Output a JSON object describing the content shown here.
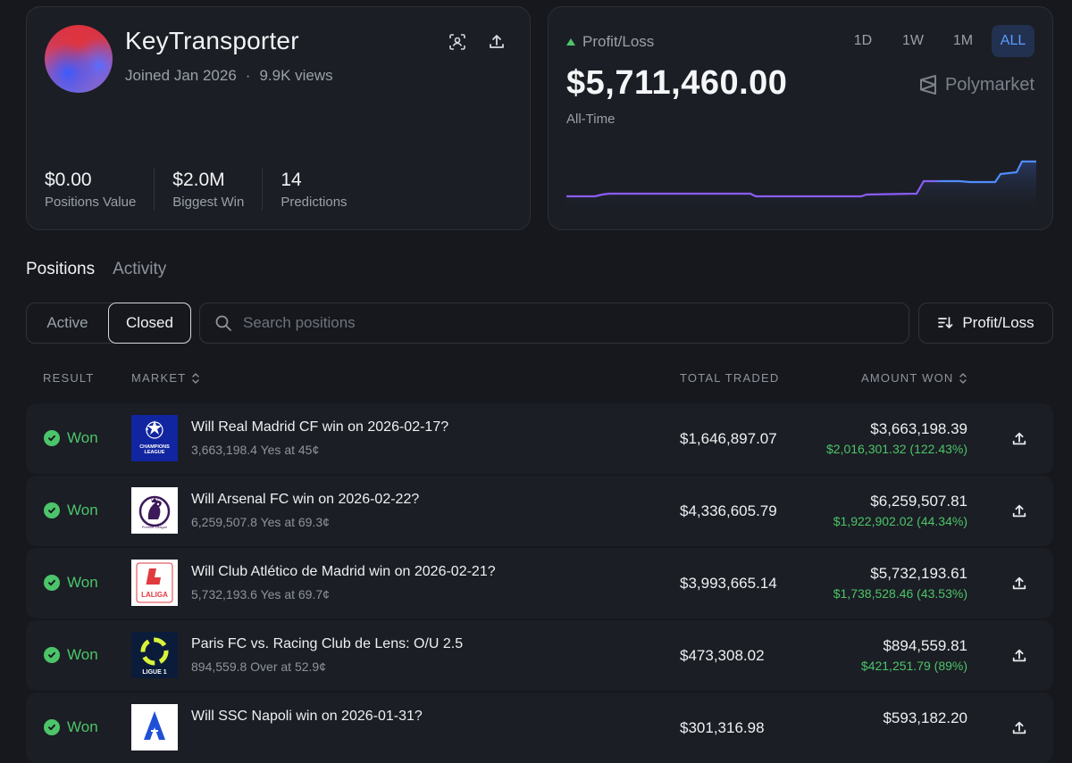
{
  "profile": {
    "name": "KeyTransporter",
    "joined": "Joined Jan 2026",
    "views": "9.9K views",
    "scan_icon": "scan-icon",
    "share_icon": "share-icon",
    "stats": [
      {
        "value": "$0.00",
        "label": "Positions Value"
      },
      {
        "value": "$2.0M",
        "label": "Biggest Win"
      },
      {
        "value": "14",
        "label": "Predictions"
      }
    ]
  },
  "pnl": {
    "title": "Profit/Loss",
    "value": "$5,711,460.00",
    "period": "All-Time",
    "brand": "Polymarket",
    "ranges": [
      "1D",
      "1W",
      "1M",
      "ALL"
    ],
    "active_range": "ALL",
    "up_color": "#4cc46a"
  },
  "tabs": {
    "positions": "Positions",
    "activity": "Activity"
  },
  "filters": {
    "active": "Active",
    "closed": "Closed",
    "search_placeholder": "Search positions",
    "sort_label": "Profit/Loss"
  },
  "table": {
    "headers": {
      "result": "RESULT",
      "market": "MARKET",
      "traded": "TOTAL TRADED",
      "won": "AMOUNT WON"
    },
    "rows": [
      {
        "result": "Won",
        "logo": "champions-league-logo",
        "question": "Will Real Madrid CF win on 2026-02-17?",
        "detail": "3,663,198.4 Yes at 45¢",
        "traded": "$1,646,897.07",
        "won": "$3,663,198.39",
        "gain": "$2,016,301.32 (122.43%)"
      },
      {
        "result": "Won",
        "logo": "premier-league-logo",
        "question": "Will Arsenal FC win on 2026-02-22?",
        "detail": "6,259,507.8 Yes at 69.3¢",
        "traded": "$4,336,605.79",
        "won": "$6,259,507.81",
        "gain": "$1,922,902.02 (44.34%)"
      },
      {
        "result": "Won",
        "logo": "laliga-logo",
        "question": "Will Club Atlético de Madrid win on 2026-02-21?",
        "detail": "5,732,193.6 Yes at 69.7¢",
        "traded": "$3,993,665.14",
        "won": "$5,732,193.61",
        "gain": "$1,738,528.46 (43.53%)"
      },
      {
        "result": "Won",
        "logo": "ligue1-logo",
        "question": "Paris FC vs. Racing Club de Lens: O/U 2.5",
        "detail": "894,559.8 Over at 52.9¢",
        "traded": "$473,308.02",
        "won": "$894,559.81",
        "gain": "$421,251.79 (89%)"
      },
      {
        "result": "Won",
        "logo": "serie-a-logo",
        "question": "Will SSC Napoli win on 2026-01-31?",
        "detail": "",
        "traded": "$301,316.98",
        "won": "$593,182.20",
        "gain": ""
      }
    ]
  },
  "colors": {
    "accent": "#5b9bff",
    "positive": "#4cc46a",
    "chart_line": "#8b5cf6",
    "chart_line_end": "#4f8dff"
  }
}
